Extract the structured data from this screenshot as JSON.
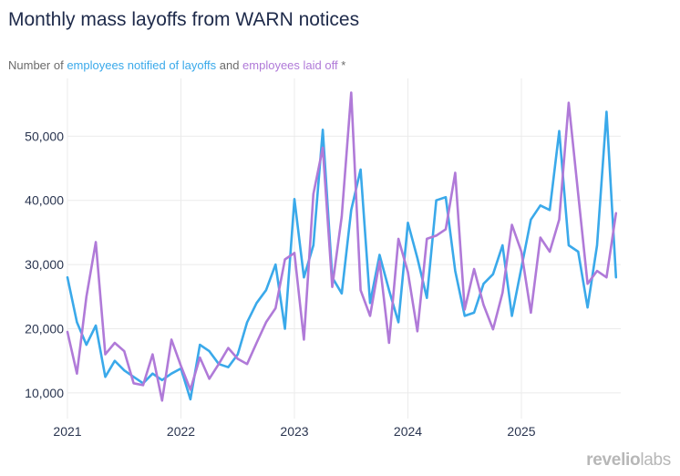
{
  "title": "Monthly mass layoffs from WARN notices",
  "subtitle": {
    "prefix": "Number of ",
    "series1": "employees notified of layoffs",
    "middle": " and ",
    "series2": "employees laid off",
    "suffix": " *"
  },
  "brand": {
    "name": "revelio",
    "suffix": "labs"
  },
  "colors": {
    "notified": "#3aa9ea",
    "laid_off": "#b07ad8",
    "grid": "#ebebeb",
    "tick": "#2a3550"
  },
  "chart_data": {
    "type": "line",
    "title": "Monthly mass layoffs from WARN notices",
    "xlabel": "",
    "ylabel": "",
    "ylim": [
      6000,
      59000
    ],
    "yticks": [
      10000,
      20000,
      30000,
      40000,
      50000
    ],
    "ytick_labels": [
      "10,000",
      "20,000",
      "30,000",
      "40,000",
      "50,000"
    ],
    "xtick_labels": [
      "2021",
      "2022",
      "2023",
      "2024",
      "2025"
    ],
    "x_start": "2021-01",
    "grid": true,
    "series": [
      {
        "name": "employees notified of layoffs",
        "color": "#3aa9ea",
        "values": [
          28000,
          21000,
          17500,
          20500,
          12500,
          15000,
          13500,
          12500,
          11500,
          13000,
          12000,
          13000,
          13800,
          9000,
          17500,
          16500,
          14500,
          14000,
          16000,
          21000,
          24000,
          26000,
          30000,
          20000,
          40200,
          28000,
          33000,
          51000,
          28000,
          25500,
          38500,
          44800,
          24000,
          31500,
          26000,
          21000,
          36500,
          31000,
          24800,
          40000,
          40500,
          29000,
          22000,
          22500,
          27000,
          28500,
          33000,
          22000,
          29500,
          37000,
          39200,
          38500,
          50800,
          33000,
          32000,
          23300,
          33000,
          53800,
          28000
        ]
      },
      {
        "name": "employees laid off",
        "color": "#b07ad8",
        "values": [
          19500,
          13000,
          25000,
          33500,
          16000,
          17800,
          16500,
          11500,
          11200,
          16000,
          8800,
          18300,
          14200,
          10500,
          15500,
          12200,
          14500,
          17000,
          15300,
          14500,
          17800,
          21000,
          23200,
          30800,
          31800,
          18300,
          41000,
          48200,
          26500,
          37500,
          56800,
          26000,
          22000,
          30500,
          17800,
          34000,
          28800,
          19600,
          34000,
          34500,
          35500,
          44300,
          23000,
          29300,
          23700,
          19900,
          25600,
          36200,
          32000,
          22500,
          34200,
          32000,
          37000,
          55200,
          41000,
          27000,
          29000,
          28000,
          38000
        ]
      }
    ]
  }
}
